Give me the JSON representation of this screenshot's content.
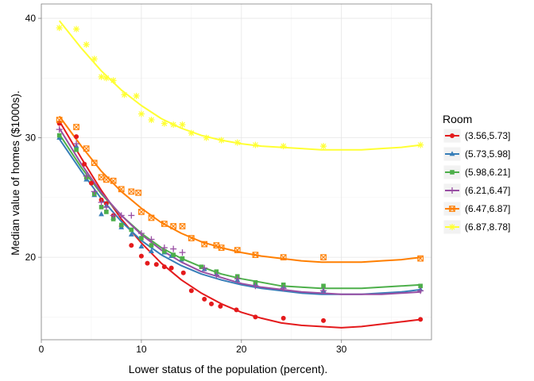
{
  "chart_data": {
    "type": "scatter",
    "title": "",
    "xlabel": "Lower status of the population (percent).",
    "ylabel": "Median value of homes ($1000s).",
    "xlim": [
      0,
      39
    ],
    "ylim": [
      13.1,
      41.2
    ],
    "x_ticks": [
      0,
      10,
      20,
      30
    ],
    "y_ticks": [
      20,
      30,
      40
    ],
    "grid": true,
    "legend": {
      "title": "Room",
      "placement": "right"
    },
    "series": [
      {
        "name": "(3.56,5.73]",
        "color": "#e41a1c",
        "marker": "circle",
        "points": [
          [
            1.8,
            31.2
          ],
          [
            3.5,
            30.1
          ],
          [
            4.3,
            27.8
          ],
          [
            5.0,
            26.2
          ],
          [
            6.0,
            24.8
          ],
          [
            6.5,
            24.5
          ],
          [
            7.2,
            23.5
          ],
          [
            8.0,
            22.6
          ],
          [
            9.0,
            21.0
          ],
          [
            10.0,
            20.1
          ],
          [
            10.6,
            19.5
          ],
          [
            11.5,
            19.4
          ],
          [
            12.3,
            19.2
          ],
          [
            13.0,
            19.1
          ],
          [
            14.2,
            18.7
          ],
          [
            15.0,
            17.2
          ],
          [
            16.3,
            16.5
          ],
          [
            17.0,
            16.1
          ],
          [
            17.9,
            15.9
          ],
          [
            19.5,
            15.6
          ],
          [
            21.4,
            15.0
          ],
          [
            24.2,
            14.9
          ],
          [
            28.2,
            14.7
          ],
          [
            37.9,
            14.8
          ]
        ],
        "fit": [
          [
            1.8,
            31.4
          ],
          [
            4,
            28.3
          ],
          [
            6,
            25.6
          ],
          [
            8,
            23.2
          ],
          [
            10,
            21.2
          ],
          [
            12,
            19.5
          ],
          [
            14,
            18.1
          ],
          [
            16,
            17.0
          ],
          [
            18,
            16.1
          ],
          [
            20,
            15.4
          ],
          [
            22,
            14.9
          ],
          [
            24,
            14.5
          ],
          [
            26,
            14.3
          ],
          [
            28,
            14.2
          ],
          [
            30,
            14.1
          ],
          [
            32,
            14.2
          ],
          [
            34,
            14.4
          ],
          [
            36,
            14.6
          ],
          [
            38,
            14.8
          ]
        ]
      },
      {
        "name": "(5.73,5.98]",
        "color": "#377eb8",
        "marker": "triangle",
        "points": [
          [
            1.8,
            30.0
          ],
          [
            3.5,
            29.3
          ],
          [
            4.5,
            26.5
          ],
          [
            5.3,
            25.2
          ],
          [
            6.0,
            23.6
          ],
          [
            6.5,
            24.3
          ],
          [
            7.2,
            23.3
          ],
          [
            8.0,
            22.5
          ],
          [
            9.0,
            21.9
          ],
          [
            10.0,
            20.9
          ],
          [
            11.0,
            20.5
          ],
          [
            12.3,
            20.4
          ],
          [
            13.0,
            20.1
          ],
          [
            14.0,
            19.8
          ],
          [
            16.3,
            19.0
          ],
          [
            17.5,
            18.6
          ],
          [
            19.6,
            18.1
          ],
          [
            21.4,
            17.8
          ],
          [
            24.2,
            17.6
          ],
          [
            28.2,
            17.2
          ],
          [
            37.9,
            17.3
          ]
        ],
        "fit": [
          [
            1.8,
            29.9
          ],
          [
            4,
            27.2
          ],
          [
            6,
            24.9
          ],
          [
            8,
            23.0
          ],
          [
            10,
            21.4
          ],
          [
            12,
            20.2
          ],
          [
            14,
            19.3
          ],
          [
            16,
            18.6
          ],
          [
            18,
            18.1
          ],
          [
            20,
            17.7
          ],
          [
            22,
            17.4
          ],
          [
            24,
            17.2
          ],
          [
            26,
            17.0
          ],
          [
            28,
            16.9
          ],
          [
            30,
            16.9
          ],
          [
            32,
            16.9
          ],
          [
            34,
            17.0
          ],
          [
            36,
            17.1
          ],
          [
            38,
            17.3
          ]
        ]
      },
      {
        "name": "(5.98,6.21]",
        "color": "#4daf4a",
        "marker": "square",
        "points": [
          [
            1.8,
            30.2
          ],
          [
            3.5,
            29.0
          ],
          [
            4.5,
            26.7
          ],
          [
            5.3,
            25.3
          ],
          [
            6.0,
            24.2
          ],
          [
            6.5,
            23.8
          ],
          [
            7.2,
            23.2
          ],
          [
            8.0,
            22.7
          ],
          [
            9.0,
            22.3
          ],
          [
            10.0,
            21.6
          ],
          [
            11.0,
            21.0
          ],
          [
            12.3,
            20.5
          ],
          [
            13.2,
            20.2
          ],
          [
            14.1,
            19.9
          ],
          [
            16.0,
            19.2
          ],
          [
            17.5,
            18.8
          ],
          [
            19.6,
            18.4
          ],
          [
            21.4,
            17.9
          ],
          [
            24.2,
            17.7
          ],
          [
            28.2,
            17.6
          ],
          [
            37.9,
            17.6
          ]
        ],
        "fit": [
          [
            1.8,
            30.3
          ],
          [
            4,
            27.5
          ],
          [
            6,
            25.3
          ],
          [
            8,
            23.5
          ],
          [
            10,
            22.0
          ],
          [
            12,
            20.8
          ],
          [
            14,
            19.9
          ],
          [
            16,
            19.2
          ],
          [
            18,
            18.6
          ],
          [
            20,
            18.2
          ],
          [
            22,
            17.9
          ],
          [
            24,
            17.6
          ],
          [
            26,
            17.5
          ],
          [
            28,
            17.4
          ],
          [
            30,
            17.4
          ],
          [
            32,
            17.4
          ],
          [
            34,
            17.5
          ],
          [
            36,
            17.6
          ],
          [
            38,
            17.7
          ]
        ]
      },
      {
        "name": "(6.21,6.47]",
        "color": "#984ea3",
        "marker": "plus",
        "points": [
          [
            1.8,
            30.7
          ],
          [
            3.5,
            29.5
          ],
          [
            4.5,
            26.8
          ],
          [
            5.3,
            25.5
          ],
          [
            6.0,
            24.6
          ],
          [
            6.5,
            24.2
          ],
          [
            7.2,
            23.5
          ],
          [
            8.0,
            23.5
          ],
          [
            9.0,
            23.5
          ],
          [
            10.0,
            22.0
          ],
          [
            11.0,
            21.5
          ],
          [
            12.3,
            20.8
          ],
          [
            13.2,
            20.7
          ],
          [
            14.1,
            20.4
          ],
          [
            16.3,
            19.1
          ],
          [
            17.5,
            18.5
          ],
          [
            19.6,
            18.2
          ],
          [
            21.4,
            17.6
          ],
          [
            24.2,
            17.4
          ],
          [
            28.2,
            17.2
          ],
          [
            37.9,
            17.2
          ]
        ],
        "fit": [
          [
            1.8,
            30.8
          ],
          [
            4,
            27.8
          ],
          [
            6,
            25.4
          ],
          [
            8,
            23.5
          ],
          [
            10,
            21.9
          ],
          [
            12,
            20.6
          ],
          [
            14,
            19.6
          ],
          [
            16,
            18.8
          ],
          [
            18,
            18.3
          ],
          [
            20,
            17.8
          ],
          [
            22,
            17.5
          ],
          [
            24,
            17.3
          ],
          [
            26,
            17.1
          ],
          [
            28,
            17.0
          ],
          [
            30,
            16.9
          ],
          [
            32,
            16.9
          ],
          [
            34,
            16.9
          ],
          [
            36,
            17.0
          ],
          [
            38,
            17.1
          ]
        ]
      },
      {
        "name": "(6.47,6.87]",
        "color": "#ff7f00",
        "marker": "square-x",
        "points": [
          [
            1.8,
            31.5
          ],
          [
            3.5,
            30.9
          ],
          [
            4.5,
            29.1
          ],
          [
            5.3,
            27.9
          ],
          [
            6.0,
            26.7
          ],
          [
            6.5,
            26.5
          ],
          [
            7.2,
            26.4
          ],
          [
            8.0,
            25.7
          ],
          [
            9.0,
            25.5
          ],
          [
            9.7,
            25.4
          ],
          [
            10.0,
            23.8
          ],
          [
            11.0,
            23.3
          ],
          [
            12.3,
            22.8
          ],
          [
            13.2,
            22.6
          ],
          [
            14.1,
            22.6
          ],
          [
            15.0,
            21.6
          ],
          [
            16.3,
            21.1
          ],
          [
            17.5,
            21.0
          ],
          [
            18.0,
            20.8
          ],
          [
            19.6,
            20.6
          ],
          [
            21.4,
            20.2
          ],
          [
            24.2,
            20.0
          ],
          [
            28.2,
            20.0
          ],
          [
            37.9,
            19.9
          ]
        ],
        "fit": [
          [
            1.8,
            31.8
          ],
          [
            4,
            29.3
          ],
          [
            6,
            27.2
          ],
          [
            8,
            25.5
          ],
          [
            10,
            24.1
          ],
          [
            12,
            22.9
          ],
          [
            14,
            22.0
          ],
          [
            16,
            21.3
          ],
          [
            18,
            20.8
          ],
          [
            20,
            20.4
          ],
          [
            22,
            20.1
          ],
          [
            24,
            19.9
          ],
          [
            26,
            19.7
          ],
          [
            28,
            19.6
          ],
          [
            30,
            19.6
          ],
          [
            32,
            19.6
          ],
          [
            34,
            19.7
          ],
          [
            36,
            19.8
          ],
          [
            38,
            20.0
          ]
        ]
      },
      {
        "name": "(6.87,8.78]",
        "color": "#ffff33",
        "marker": "asterisk",
        "points": [
          [
            1.8,
            39.2
          ],
          [
            3.5,
            39.1
          ],
          [
            4.5,
            37.8
          ],
          [
            5.3,
            36.6
          ],
          [
            6.0,
            35.1
          ],
          [
            6.5,
            35.0
          ],
          [
            7.2,
            34.8
          ],
          [
            8.3,
            33.6
          ],
          [
            9.5,
            33.5
          ],
          [
            10.0,
            32.0
          ],
          [
            11.0,
            31.5
          ],
          [
            12.3,
            31.2
          ],
          [
            13.2,
            31.1
          ],
          [
            14.1,
            31.1
          ],
          [
            15.0,
            30.4
          ],
          [
            16.5,
            30.0
          ],
          [
            18.0,
            29.8
          ],
          [
            19.6,
            29.6
          ],
          [
            21.4,
            29.4
          ],
          [
            24.2,
            29.3
          ],
          [
            28.2,
            29.3
          ],
          [
            37.9,
            29.4
          ]
        ],
        "fit": [
          [
            1.8,
            39.8
          ],
          [
            4,
            37.5
          ],
          [
            6,
            35.6
          ],
          [
            8,
            34.0
          ],
          [
            10,
            32.7
          ],
          [
            12,
            31.6
          ],
          [
            14,
            30.8
          ],
          [
            16,
            30.2
          ],
          [
            18,
            29.8
          ],
          [
            20,
            29.5
          ],
          [
            22,
            29.3
          ],
          [
            24,
            29.2
          ],
          [
            26,
            29.1
          ],
          [
            28,
            29.0
          ],
          [
            30,
            29.0
          ],
          [
            32,
            29.0
          ],
          [
            34,
            29.1
          ],
          [
            36,
            29.2
          ],
          [
            38,
            29.4
          ]
        ]
      }
    ]
  }
}
